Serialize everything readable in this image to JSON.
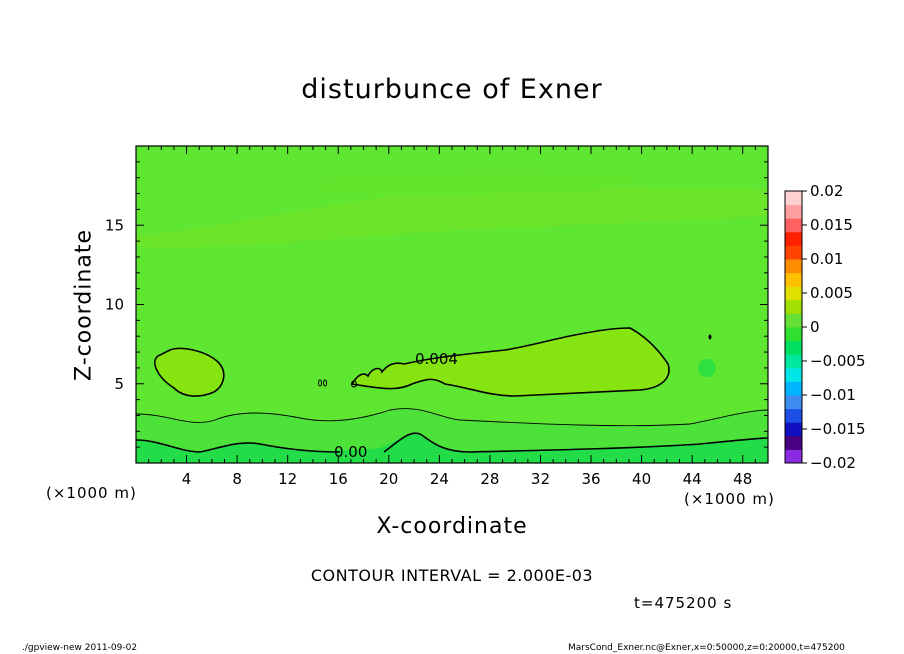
{
  "chart_data": {
    "type": "heatmap",
    "title": "disturbunce of Exner",
    "xlabel": "X-coordinate",
    "ylabel": "Z-coordinate",
    "x_unit_left": "(×1000 m)",
    "x_unit_right": "(×1000 m)",
    "xlim": [
      0,
      50
    ],
    "ylim": [
      0,
      20
    ],
    "x_ticks": [
      "4",
      "8",
      "12",
      "16",
      "20",
      "24",
      "28",
      "32",
      "36",
      "40",
      "44",
      "48"
    ],
    "y_ticks": [
      "5",
      "10",
      "15"
    ],
    "contour_interval_text": "CONTOUR INTERVAL = 2.000E-03",
    "contour_labels": [
      "0.004",
      "0.00"
    ],
    "colorbar": {
      "ticks": [
        "0.02",
        "0.015",
        "0.01",
        "0.005",
        "0",
        "−0.005",
        "−0.01",
        "−0.015",
        "−0.02"
      ],
      "min": -0.02,
      "max": 0.02,
      "colors": [
        "#8a2be2",
        "#4b0082",
        "#1010c0",
        "#1e50e6",
        "#3f8cf0",
        "#00b4ff",
        "#00e5e5",
        "#00e8a0",
        "#00e060",
        "#30e030",
        "#66e036",
        "#a0e000",
        "#e0e000",
        "#ffc000",
        "#ff8c00",
        "#ff4500",
        "#ff2000",
        "#ff6060",
        "#ffa0a0",
        "#ffd0d0"
      ]
    },
    "field_colors": {
      "background": "#5ee630",
      "upper_band": "#6ce42a",
      "upper_band_inner": "#63e52e",
      "positive_blob": "#86e410",
      "lower_level": "#4de23a",
      "surface": "#22dd48",
      "small_cell": "#30e040"
    }
  },
  "timestamp": "t=475200  s",
  "footer": {
    "left": "./gpview-new   2011-09-02",
    "right": "MarsCond_Exner.nc@Exner,x=0:50000,z=0:20000,t=475200"
  }
}
